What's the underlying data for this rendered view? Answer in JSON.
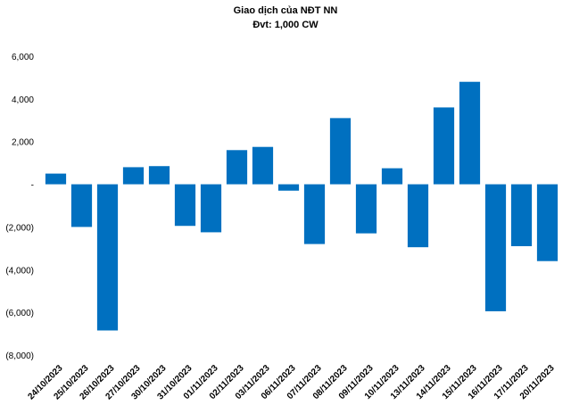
{
  "chart_data": {
    "type": "bar",
    "title": "Giao dịch của NĐT NN",
    "subtitle": "Đvt: 1,000 CW",
    "categories": [
      "24/10/2023",
      "25/10/2023",
      "26/10/2023",
      "27/10/2023",
      "30/10/2023",
      "31/10/2023",
      "01/11/2023",
      "02/11/2023",
      "03/11/2023",
      "06/11/2023",
      "07/11/2023",
      "08/11/2023",
      "09/11/2023",
      "10/11/2023",
      "13/11/2023",
      "14/11/2023",
      "15/11/2023",
      "16/11/2023",
      "17/11/2023",
      "20/11/2023"
    ],
    "values": [
      500,
      -2000,
      -6850,
      800,
      850,
      -1950,
      -2250,
      1600,
      1750,
      -300,
      -2800,
      3100,
      -2300,
      750,
      -2950,
      3600,
      4800,
      -5950,
      -2900,
      -3600
    ],
    "ylim": [
      -8000,
      6000
    ],
    "yticks": [
      6000,
      4000,
      2000,
      0,
      -2000,
      -4000,
      -6000,
      -8000
    ],
    "ytick_labels": [
      "6,000",
      "4,000",
      "2,000",
      "-",
      "(2,000)",
      "(4,000)",
      "(6,000)",
      "(8,000)"
    ],
    "bar_color": "#0070C0",
    "grid": false
  }
}
